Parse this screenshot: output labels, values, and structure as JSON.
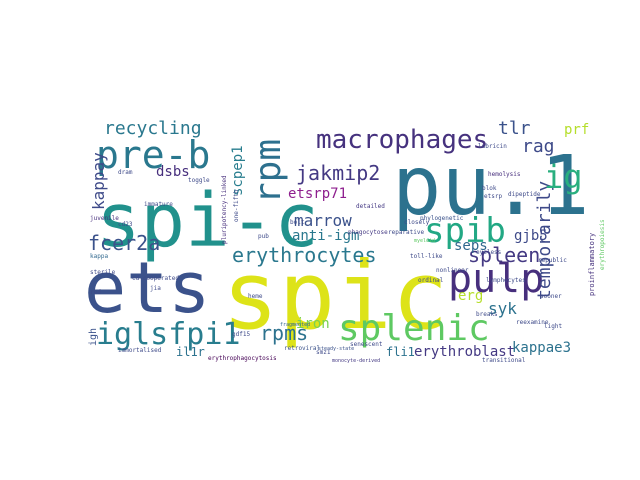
{
  "words": [
    {
      "text": "spi-c",
      "color": "#21918c"
    },
    {
      "text": "spic",
      "color": "#dde318"
    },
    {
      "text": "ets",
      "color": "#3b528b"
    },
    {
      "text": "pu.1",
      "color": "#2c728e"
    },
    {
      "text": "pre-b",
      "color": "#2a788e"
    },
    {
      "text": "rpm",
      "color": "#2d708e"
    },
    {
      "text": "macrophages",
      "color": "#46327e"
    },
    {
      "text": "pulp",
      "color": "#472f7d"
    },
    {
      "text": "splenic",
      "color": "#5ec962"
    },
    {
      "text": "iglsfpi1",
      "color": "#287d8e"
    },
    {
      "text": "spib",
      "color": "#22a884"
    },
    {
      "text": "recycling",
      "color": "#2a788e"
    },
    {
      "text": "kappay",
      "color": "#3e4a89"
    },
    {
      "text": "jakmip2",
      "color": "#443983"
    },
    {
      "text": "fcer2a",
      "color": "#3b528b"
    },
    {
      "text": "erythrocytes",
      "color": "#2a788e"
    },
    {
      "text": "temporarily",
      "color": "#3e4a89"
    },
    {
      "text": "spleen",
      "color": "#443983"
    },
    {
      "text": "ig",
      "color": "#29af7f"
    },
    {
      "text": "tlr",
      "color": "#3b528b"
    },
    {
      "text": "rag",
      "color": "#3e4a89"
    },
    {
      "text": "prf",
      "color": "#b5de2b"
    },
    {
      "text": "scpep1",
      "color": "#287d8e"
    },
    {
      "text": "dsbs",
      "color": "#472f7d"
    },
    {
      "text": "etsrp71",
      "color": "#8e1f8e"
    },
    {
      "text": "rpms",
      "color": "#2c728e"
    },
    {
      "text": "marrow",
      "color": "#3b528b"
    },
    {
      "text": "anti-igm",
      "color": "#2a788e"
    },
    {
      "text": "iron",
      "color": "#7ad151"
    },
    {
      "text": "erg",
      "color": "#b5de2b"
    },
    {
      "text": "seps",
      "color": "#31688e"
    },
    {
      "text": "syk",
      "color": "#2c728e"
    },
    {
      "text": "gjb5",
      "color": "#3e4a89"
    },
    {
      "text": "il1r",
      "color": "#2c728e"
    },
    {
      "text": "fli1",
      "color": "#2c728e"
    },
    {
      "text": "erythroblast",
      "color": "#443983"
    },
    {
      "text": "kappae3",
      "color": "#2c728e"
    },
    {
      "text": "igh",
      "color": "#3b528b"
    },
    {
      "text": "proinflammatory",
      "color": "#46327e"
    },
    {
      "text": "erythropoiesis",
      "color": "#5ec962"
    },
    {
      "text": "phylogenetic",
      "color": "#3b528b"
    },
    {
      "text": "monocyte-derived",
      "color": "#443983"
    },
    {
      "text": "erythrophagocytosis",
      "color": "#440154"
    },
    {
      "text": "toll-like",
      "color": "#3e4a89"
    },
    {
      "text": "transitional",
      "color": "#3e4a89"
    },
    {
      "text": "immortalised",
      "color": "#3e4a89"
    },
    {
      "text": "retroviral",
      "color": "#3b528b"
    },
    {
      "text": "steady-state",
      "color": "#3b528b"
    },
    {
      "text": "senescent",
      "color": "#3e4a89"
    },
    {
      "text": "phagocytose",
      "color": "#443983"
    },
    {
      "text": "pluripotency-linked",
      "color": "#472f7d"
    },
    {
      "text": "myeloid",
      "color": "#5ec962"
    },
    {
      "text": "fragmented",
      "color": "#31688e"
    },
    {
      "text": "closely",
      "color": "#3e4a89"
    },
    {
      "text": "detailed",
      "color": "#443983"
    },
    {
      "text": "juvenile",
      "color": "#472f7d"
    },
    {
      "text": "sterile",
      "color": "#3e4a89"
    },
    {
      "text": "immature",
      "color": "#3e4a89"
    },
    {
      "text": "toggle",
      "color": "#3e4a89"
    },
    {
      "text": "kappa",
      "color": "#31688e"
    },
    {
      "text": "cd23",
      "color": "#3e4a89"
    },
    {
      "text": "dram",
      "color": "#3e4a89"
    },
    {
      "text": "hemolysis",
      "color": "#472f7d"
    },
    {
      "text": "dipeptide",
      "color": "#3e4a89"
    },
    {
      "text": "lubricin",
      "color": "#3e4a89"
    },
    {
      "text": "blok",
      "color": "#3e4a89"
    },
    {
      "text": "etsrp",
      "color": "#3e4a89"
    },
    {
      "text": "ordinal",
      "color": "#3e4a89"
    },
    {
      "text": "lymphocytes",
      "color": "#3e4a89"
    },
    {
      "text": "sooner",
      "color": "#3e4a89"
    },
    {
      "text": "reexamine",
      "color": "#3e4a89"
    },
    {
      "text": "breaks",
      "color": "#3e4a89"
    },
    {
      "text": "light",
      "color": "#3e4a89"
    },
    {
      "text": "red",
      "color": "#3e4a89"
    },
    {
      "text": "gdf15",
      "color": "#3e4a89"
    },
    {
      "text": "smz1",
      "color": "#3e4a89"
    },
    {
      "text": "heme",
      "color": "#3e4a89"
    },
    {
      "text": "pub",
      "color": "#3e4a89"
    },
    {
      "text": "bolt",
      "color": "#3e4a89"
    },
    {
      "text": "one-fifth",
      "color": "#3e4a89"
    },
    {
      "text": "eyeless",
      "color": "#3e4a89"
    },
    {
      "text": "cd-cooperated",
      "color": "#3e4a89"
    },
    {
      "text": "jia",
      "color": "#3e4a89"
    },
    {
      "text": "republic",
      "color": "#3e4a89"
    },
    {
      "text": "nonlinear",
      "color": "#3e4a89"
    },
    {
      "text": "reparative",
      "color": "#3e4a89"
    }
  ]
}
